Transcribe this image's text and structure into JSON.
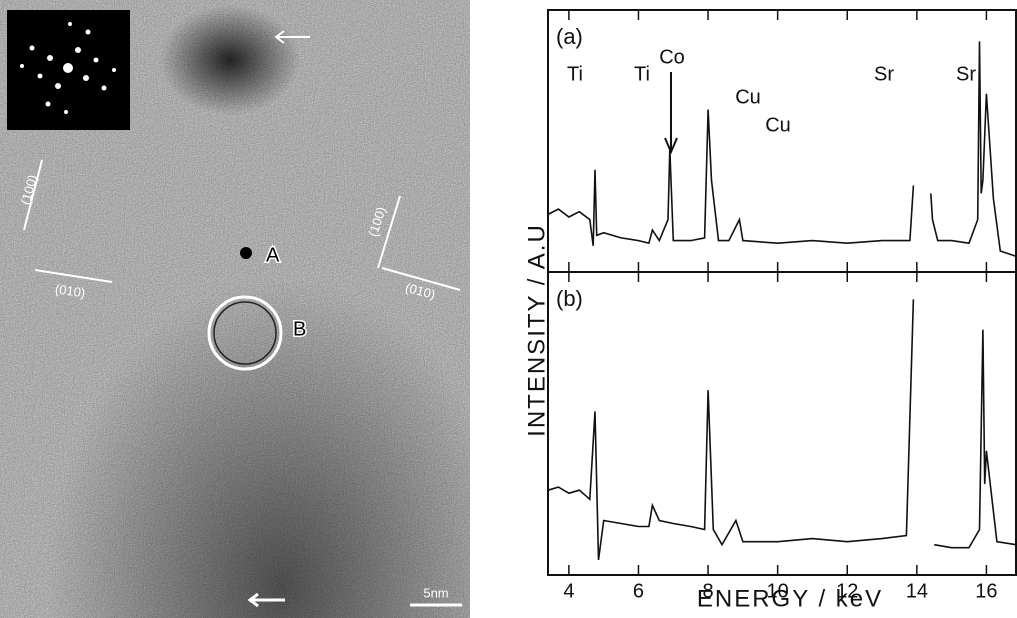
{
  "image": {
    "labels": {
      "plane_left_1": "(100)",
      "plane_left_2": "(010)",
      "plane_right_1": "(100)",
      "plane_right_2": "(010)",
      "point_a": "A",
      "point_b": "B",
      "scale_bar": "5nm"
    }
  },
  "chart_data": [
    {
      "type": "line",
      "label": "(a)",
      "ylabel": "INTENSITY  /  A.U",
      "annotations": [
        "Ti",
        "Ti",
        "Co",
        "Cu",
        "Cu",
        "Sr",
        "Sr"
      ],
      "xlim": [
        3.4,
        16.85
      ],
      "ylim": [
        0,
        100
      ],
      "x": [
        3.4,
        3.7,
        4.0,
        4.3,
        4.6,
        4.7,
        4.75,
        4.8,
        5.0,
        5.5,
        6.0,
        6.3,
        6.4,
        6.6,
        6.85,
        6.9,
        6.95,
        7.0,
        7.5,
        7.9,
        8.0,
        8.1,
        8.3,
        8.6,
        8.9,
        9.0,
        10.0,
        11.0,
        12.0,
        13.0,
        13.8,
        13.9,
        14.0,
        14.4,
        14.45,
        14.6,
        15.0,
        15.5,
        15.75,
        15.8,
        15.85,
        15.9,
        16.0,
        16.2,
        16.4,
        16.85
      ],
      "values": [
        22,
        24,
        21,
        23,
        20,
        10,
        39,
        14,
        15,
        13,
        12,
        11,
        16,
        12,
        20,
        47,
        30,
        12,
        12,
        13,
        62,
        35,
        12,
        12,
        20,
        12,
        11,
        12,
        11,
        12,
        12,
        33,
        null,
        30,
        20,
        12,
        12,
        11,
        20,
        88,
        30,
        35,
        68,
        28,
        8,
        6
      ]
    },
    {
      "type": "line",
      "label": "(b)",
      "xlabel": "ENERGY  /  keV",
      "xlim": [
        3.4,
        16.85
      ],
      "ylim": [
        0,
        100
      ],
      "xticks": [
        4,
        6,
        8,
        10,
        12,
        14,
        16
      ],
      "x": [
        3.4,
        3.7,
        4.0,
        4.3,
        4.5,
        4.6,
        4.75,
        4.85,
        5.0,
        5.5,
        6.0,
        6.3,
        6.4,
        6.6,
        7.0,
        7.5,
        7.9,
        8.0,
        8.15,
        8.4,
        8.8,
        9.0,
        10.0,
        11.0,
        12.0,
        13.0,
        13.7,
        13.9,
        14.0,
        14.5,
        15.0,
        15.5,
        15.8,
        15.9,
        15.95,
        16.0,
        16.3,
        16.85
      ],
      "values": [
        28,
        29,
        27,
        28,
        26,
        25,
        54,
        5,
        18,
        17,
        16,
        16,
        23,
        18,
        17,
        16,
        15,
        61,
        15,
        10,
        18,
        11,
        11,
        12,
        11,
        12,
        13,
        91,
        null,
        10,
        9,
        9,
        15,
        81,
        30,
        41,
        11,
        10
      ]
    }
  ]
}
